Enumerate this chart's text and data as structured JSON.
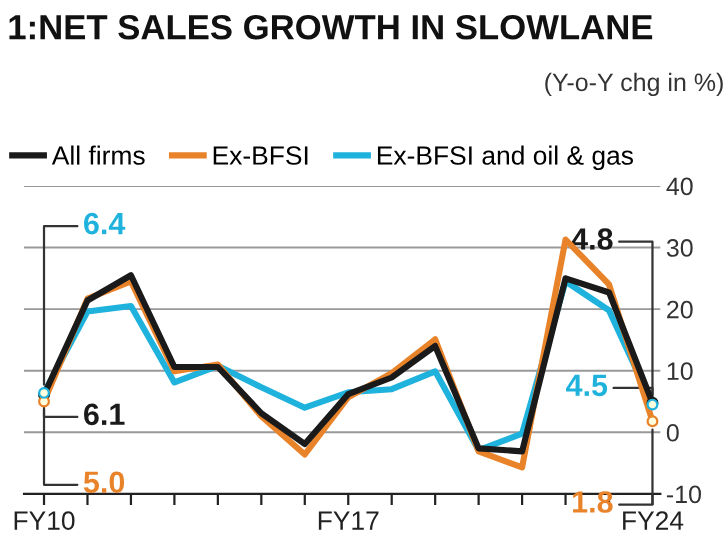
{
  "chart_data": {
    "type": "line",
    "title": "1:NET SALES GROWTH IN SLOWLANE",
    "subtitle": "(Y-o-Y chg in %)",
    "categories": [
      "FY10",
      null,
      null,
      null,
      null,
      null,
      null,
      "FY17",
      null,
      null,
      null,
      null,
      null,
      null,
      "FY24"
    ],
    "series": [
      {
        "name": "All firms",
        "color": "#1a1a1a",
        "values": [
          6.1,
          21.4,
          25.5,
          10.6,
          10.6,
          3.1,
          -1.9,
          6.2,
          8.9,
          14,
          -2.6,
          -3.1,
          25,
          22.7,
          4.8
        ],
        "value_labels": [
          "6.1",
          null,
          null,
          null,
          null,
          null,
          null,
          null,
          null,
          null,
          null,
          null,
          null,
          null,
          "4.8"
        ]
      },
      {
        "name": "Ex-BFSI",
        "color": "#e8832a",
        "values": [
          5.0,
          21.7,
          24.5,
          9.9,
          11,
          2.6,
          -3.6,
          5.7,
          9.6,
          15.1,
          -3.1,
          -5.7,
          31.3,
          24,
          1.8
        ],
        "value_labels": [
          "5.0",
          null,
          null,
          null,
          null,
          null,
          null,
          null,
          null,
          null,
          null,
          null,
          null,
          null,
          "1.8"
        ]
      },
      {
        "name": "Ex-BFSI and oil & gas",
        "color": "#1fb2dc",
        "values": [
          6.4,
          19.6,
          20.5,
          8.1,
          10.8,
          7.3,
          4,
          6.5,
          7,
          9.9,
          -2.9,
          -0.2,
          24.5,
          19.8,
          4.5
        ],
        "value_labels": [
          "6.4",
          null,
          null,
          null,
          null,
          null,
          null,
          null,
          null,
          null,
          null,
          null,
          null,
          null,
          "4.5"
        ]
      }
    ],
    "ylim": [
      -10,
      40
    ],
    "yticks": [
      -10,
      0,
      10,
      20,
      30,
      40
    ],
    "grid": "y",
    "legend": "top",
    "marker": "none",
    "line_style": "solid"
  }
}
